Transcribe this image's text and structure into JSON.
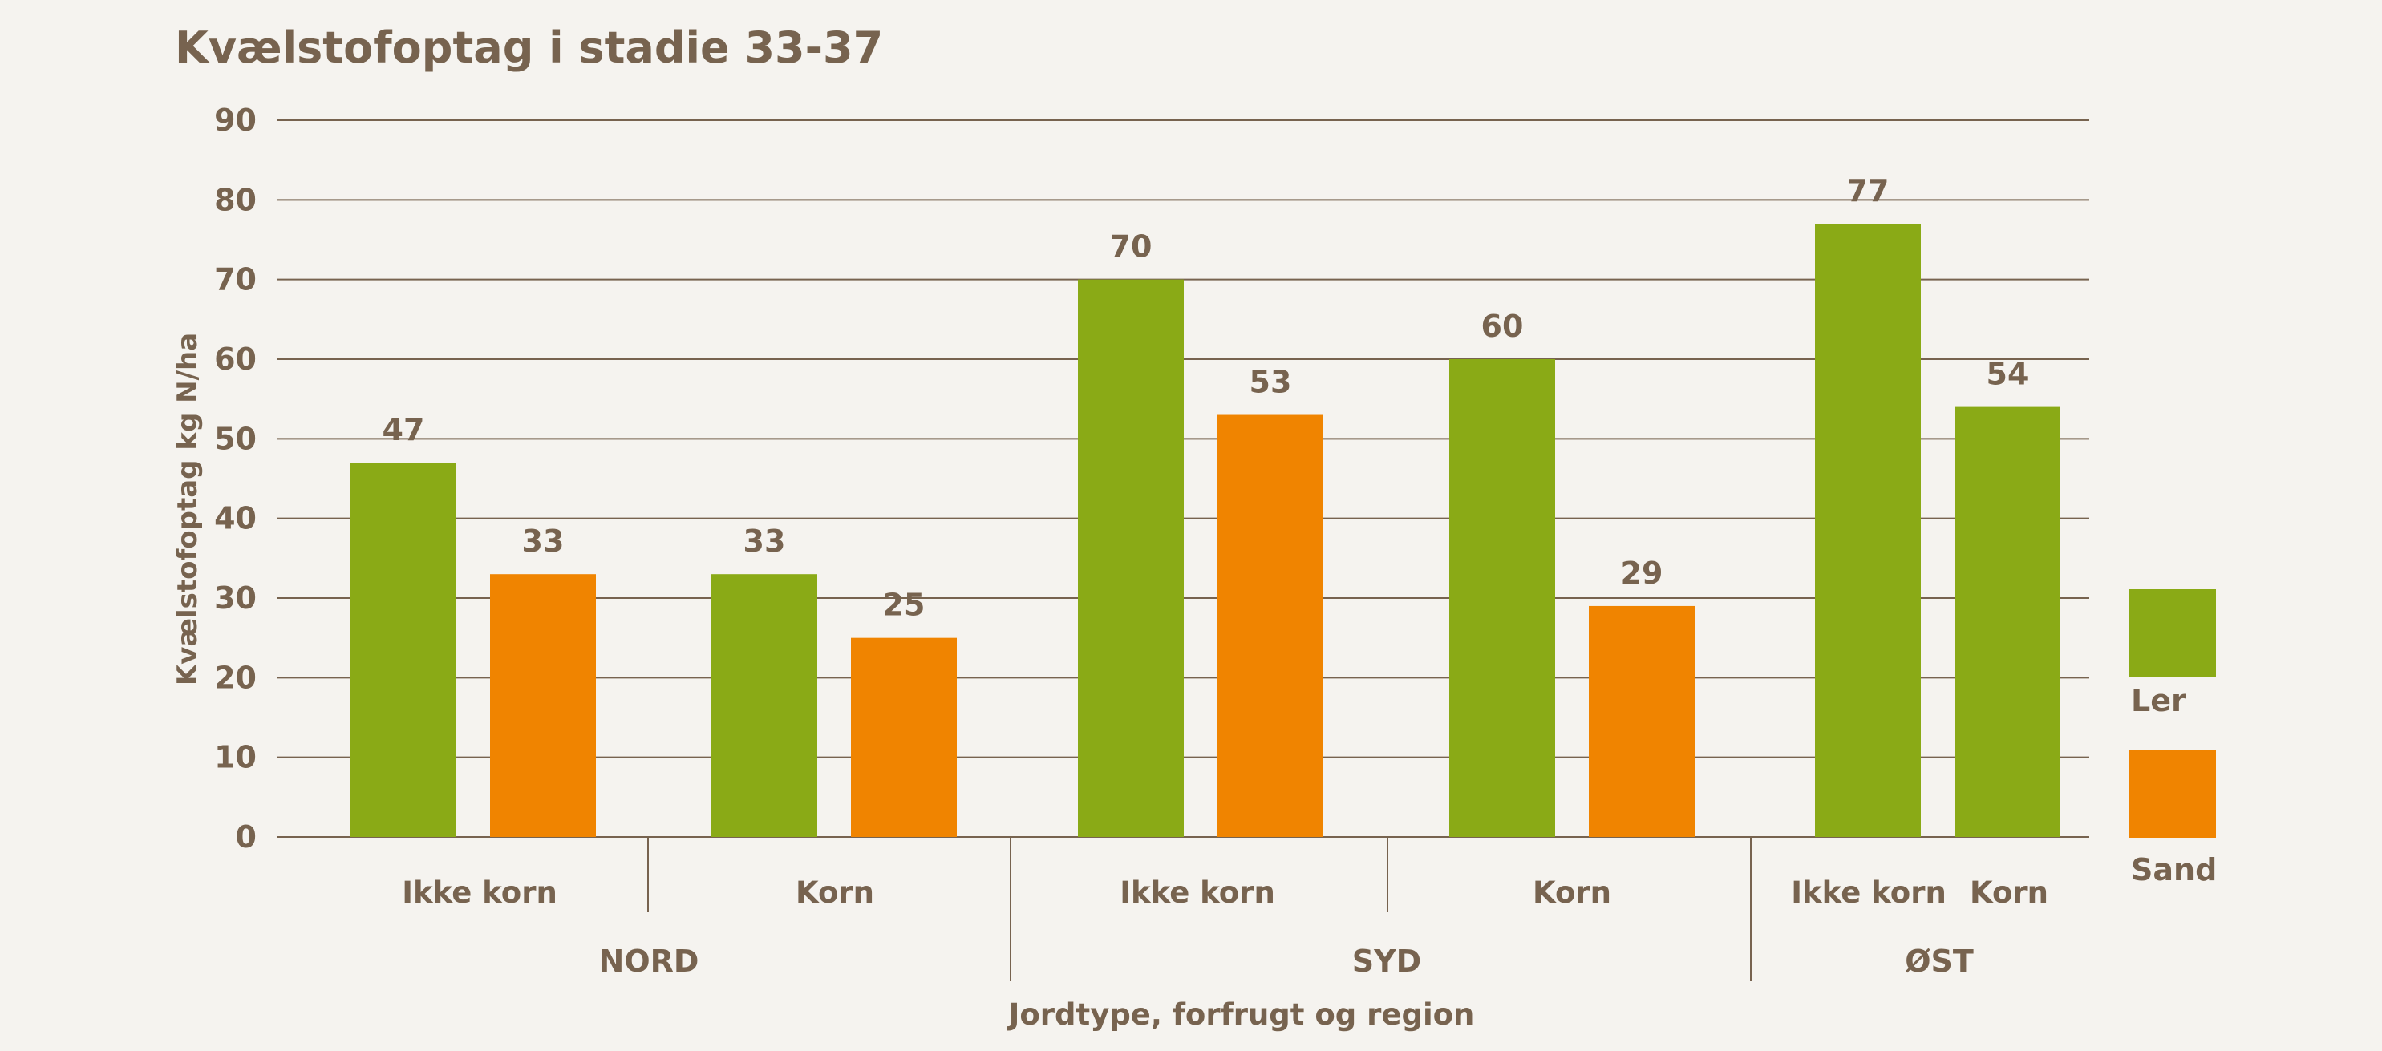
{
  "chart_data": {
    "type": "bar",
    "title": "Kvælstofoptag i stadie 33-37",
    "xlabel": "Jordtype, forfrugt og region",
    "ylabel": "Kvælstofoptag kg N/ha",
    "ylim": [
      0,
      90
    ],
    "yticks": [
      "0",
      "10",
      "20",
      "30",
      "40",
      "50",
      "60",
      "70",
      "80",
      "90"
    ],
    "grid": true,
    "legend_position": "right",
    "regions": [
      "NORD",
      "SYD",
      "ØST"
    ],
    "categories": [
      {
        "region": "NORD",
        "label": "Ikke korn"
      },
      {
        "region": "NORD",
        "label": "Korn"
      },
      {
        "region": "SYD",
        "label": "Ikke korn"
      },
      {
        "region": "SYD",
        "label": "Korn"
      },
      {
        "region": "ØST",
        "label": "Ikke korn"
      },
      {
        "region": "ØST",
        "label": "Korn"
      }
    ],
    "series": [
      {
        "name": "Ler",
        "color": "#8aaa16",
        "values": [
          47,
          33,
          70,
          60,
          77,
          54
        ]
      },
      {
        "name": "Sand",
        "color": "#f08400",
        "values": [
          33,
          25,
          53,
          29,
          null,
          null
        ]
      }
    ],
    "data_labels": {
      "Ler": [
        "47",
        "33",
        "70",
        "60",
        "77",
        "54"
      ],
      "Sand": [
        "33",
        "25",
        "53",
        "29",
        "",
        ""
      ]
    },
    "colors": {
      "text": "#77634f",
      "grid": "#77634f",
      "background": "#f5f3ef"
    }
  }
}
